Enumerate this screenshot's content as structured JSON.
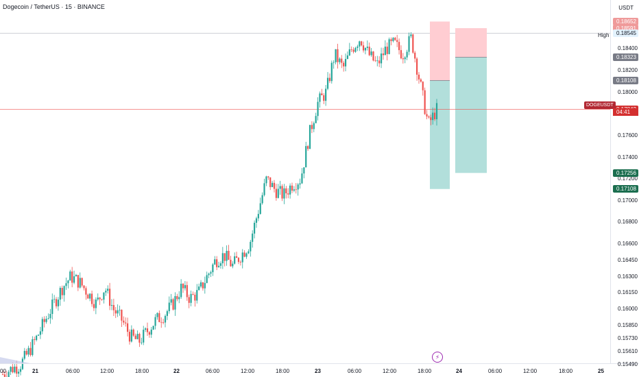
{
  "header": {
    "title": "Dogecoin / TetherUS · 15 · BINANCE",
    "currency": "USDT"
  },
  "chart_data": {
    "type": "candlestick",
    "symbol": "DOGEUSDT",
    "interval": "15",
    "ylim": [
      0.154,
      0.188
    ],
    "y_ticks": [
      "0.18400",
      "0.18200",
      "0.18000",
      "0.17600",
      "0.17400",
      "0.17200",
      "0.17000",
      "0.16800",
      "0.16600",
      "0.16450",
      "0.16300",
      "0.16150",
      "0.16000",
      "0.15850",
      "0.15730",
      "0.15610",
      "0.15490"
    ],
    "x_ticks": [
      "00",
      "21",
      "06:00",
      "12:00",
      "18:00",
      "22",
      "06:00",
      "12:00",
      "18:00",
      "23",
      "06:00",
      "12:00",
      "18:00",
      "24",
      "06:00",
      "12:00",
      "18:00",
      "25"
    ],
    "key_points": [
      0.154,
      0.1545,
      0.1548,
      0.156,
      0.1574,
      0.159,
      0.1605,
      0.162,
      0.163,
      0.1625,
      0.1615,
      0.1605,
      0.162,
      0.16,
      0.159,
      0.1575,
      0.157,
      0.158,
      0.159,
      0.1595,
      0.1605,
      0.162,
      0.161,
      0.1615,
      0.163,
      0.1645,
      0.165,
      0.164,
      0.165,
      0.166,
      0.169,
      0.172,
      0.171,
      0.1705,
      0.1715,
      0.172,
      0.176,
      0.179,
      0.18,
      0.1835,
      0.1822,
      0.184,
      0.185,
      0.1835,
      0.1825,
      0.184,
      0.1845,
      0.1835,
      0.185,
      0.181,
      0.177,
      0.1784
    ],
    "last_price": 0.17843,
    "countdown": "04:41",
    "high": 0.18545,
    "high_label": "High",
    "positions": [
      {
        "entry": 0.18108,
        "stop": 0.18652,
        "target": 0.17108,
        "profit_color": "#b2dfdb",
        "loss_color": "#ffcdd2"
      },
      {
        "entry": 0.18323,
        "stop": 0.18591,
        "target": 0.17256,
        "profit_color": "#b2dfdb",
        "loss_color": "#ffcdd2"
      }
    ],
    "price_tags": [
      {
        "label": "0.18652",
        "value": 0.18652,
        "color": "#ef9a9a"
      },
      {
        "label": "0.18591",
        "value": 0.18591,
        "color": "#ef9a9a"
      },
      {
        "label": "0.18545",
        "value": 0.18545,
        "color": "#e3f2fd",
        "text_color": "#131722"
      },
      {
        "label": "0.18323",
        "value": 0.18323,
        "color": "#787b86"
      },
      {
        "label": "0.18108",
        "value": 0.18108,
        "color": "#787b86"
      },
      {
        "label": "0.17843",
        "value": 0.17843,
        "color": "#d32f2f"
      },
      {
        "label": "0.17256",
        "value": 0.17256,
        "color": "#1b6e4f"
      },
      {
        "label": "0.17108",
        "value": 0.17108,
        "color": "#1b6e4f"
      }
    ],
    "colors": {
      "up": "#26a69a",
      "down": "#ef5350",
      "last_line": "#ef5350",
      "high_line": "#b2b5be"
    }
  }
}
